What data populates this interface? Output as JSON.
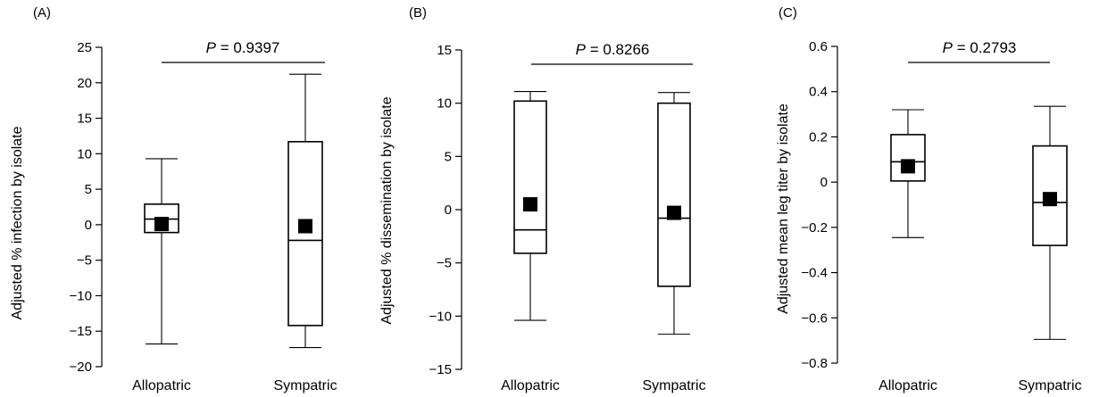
{
  "chart_data": [
    {
      "type": "box",
      "panel_label": "(A)",
      "ylabel": "Adjusted % infection by isolate",
      "ylim": [
        -20,
        25
      ],
      "yticks": [
        25,
        20,
        15,
        10,
        5,
        0,
        -5,
        -10,
        -15,
        -20
      ],
      "ytick_labels": [
        "25",
        "20",
        "15",
        "10",
        "5",
        "0",
        "−5",
        "−10",
        "−15",
        "−20"
      ],
      "categories": [
        "Allopatric",
        "Sympatric"
      ],
      "boxes": [
        {
          "category": "Allopatric",
          "whisker_low": -16.8,
          "q1": -1.1,
          "median": 0.8,
          "q3": 2.9,
          "whisker_high": 9.3,
          "mean": 0.1
        },
        {
          "category": "Sympatric",
          "whisker_low": -17.3,
          "q1": -14.2,
          "median": -2.2,
          "q3": 11.7,
          "whisker_high": 21.2,
          "mean": -0.2
        }
      ],
      "p_label": "P",
      "p_value_text": " = 0.9397"
    },
    {
      "type": "box",
      "panel_label": "(B)",
      "ylabel": "Adjusted % dissemination by isolate",
      "ylim": [
        -15,
        15
      ],
      "yticks": [
        15,
        10,
        5,
        0,
        -5,
        -10,
        -15
      ],
      "ytick_labels": [
        "15",
        "10",
        "5",
        "0",
        "−5",
        "−10",
        "−15"
      ],
      "categories": [
        "Allopatric",
        "Sympatric"
      ],
      "boxes": [
        {
          "category": "Allopatric",
          "whisker_low": -10.4,
          "q1": -4.1,
          "median": -1.9,
          "q3": 10.2,
          "whisker_high": 11.1,
          "mean": 0.5
        },
        {
          "category": "Sympatric",
          "whisker_low": -11.7,
          "q1": -7.2,
          "median": -0.8,
          "q3": 10.0,
          "whisker_high": 11.0,
          "mean": -0.3
        }
      ],
      "p_label": "P",
      "p_value_text": " = 0.8266"
    },
    {
      "type": "box",
      "panel_label": "(C)",
      "ylabel": "Adjusted mean leg titer by isolate",
      "ylim": [
        -0.8,
        0.6
      ],
      "yticks": [
        0.6,
        0.4,
        0.2,
        0,
        -0.2,
        -0.4,
        -0.6,
        -0.8
      ],
      "ytick_labels": [
        "0.6",
        "0.4",
        "0.2",
        "0",
        "−0.2",
        "−0.4",
        "−0.6",
        "−0.8"
      ],
      "categories": [
        "Allopatric",
        "Sympatric"
      ],
      "boxes": [
        {
          "category": "Allopatric",
          "whisker_low": -0.245,
          "q1": 0.005,
          "median": 0.09,
          "q3": 0.21,
          "whisker_high": 0.32,
          "mean": 0.07
        },
        {
          "category": "Sympatric",
          "whisker_low": -0.695,
          "q1": -0.28,
          "median": -0.09,
          "q3": 0.16,
          "whisker_high": 0.335,
          "mean": -0.075
        }
      ],
      "p_label": "P",
      "p_value_text": " = 0.2793"
    }
  ]
}
